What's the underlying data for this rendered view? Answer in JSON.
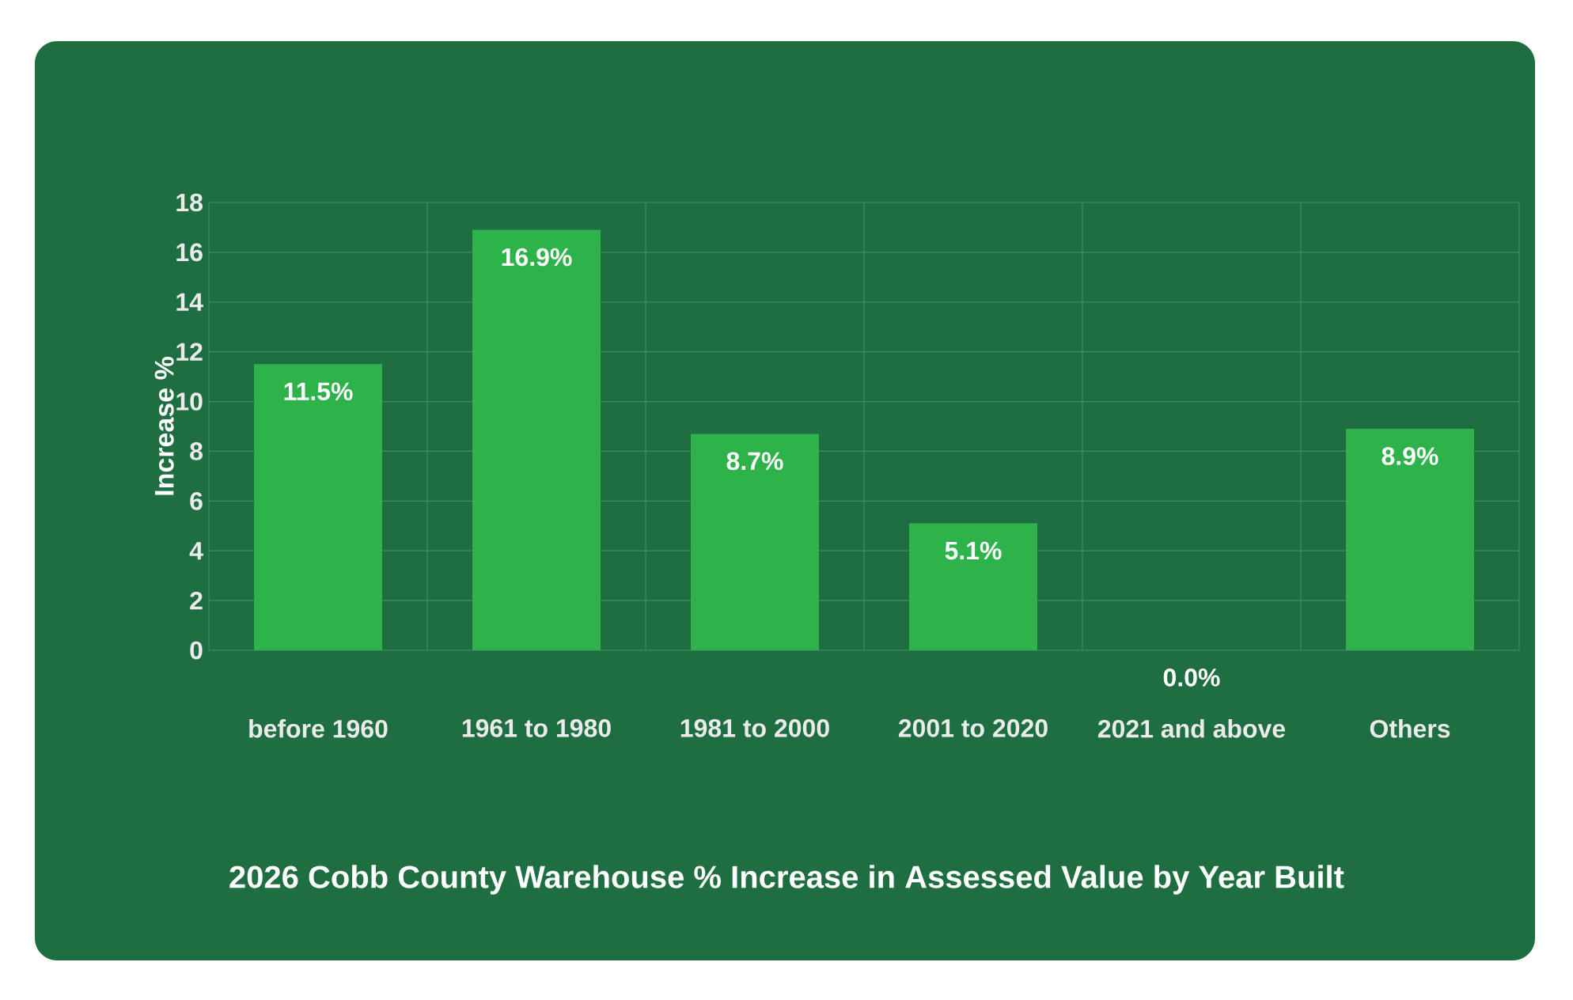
{
  "chart_data": {
    "type": "bar",
    "title": "2026 Cobb County Warehouse % Increase in Assessed Value by Year Built",
    "ylabel": "Increase %",
    "categories": [
      "before 1960",
      "1961 to 1980",
      "1981 to 2000",
      "2001 to 2020",
      "2021 and above",
      "Others"
    ],
    "values": [
      11.5,
      16.9,
      8.7,
      5.1,
      0.0,
      8.9
    ],
    "value_labels": [
      "11.5%",
      "16.9%",
      "8.7%",
      "5.1%",
      "0.0%",
      "8.9%"
    ],
    "color": "#2db34a",
    "ylim": [
      0,
      18
    ],
    "yticks": [
      0,
      2,
      4,
      6,
      8,
      10,
      12,
      14,
      16,
      18
    ],
    "grid": true
  }
}
